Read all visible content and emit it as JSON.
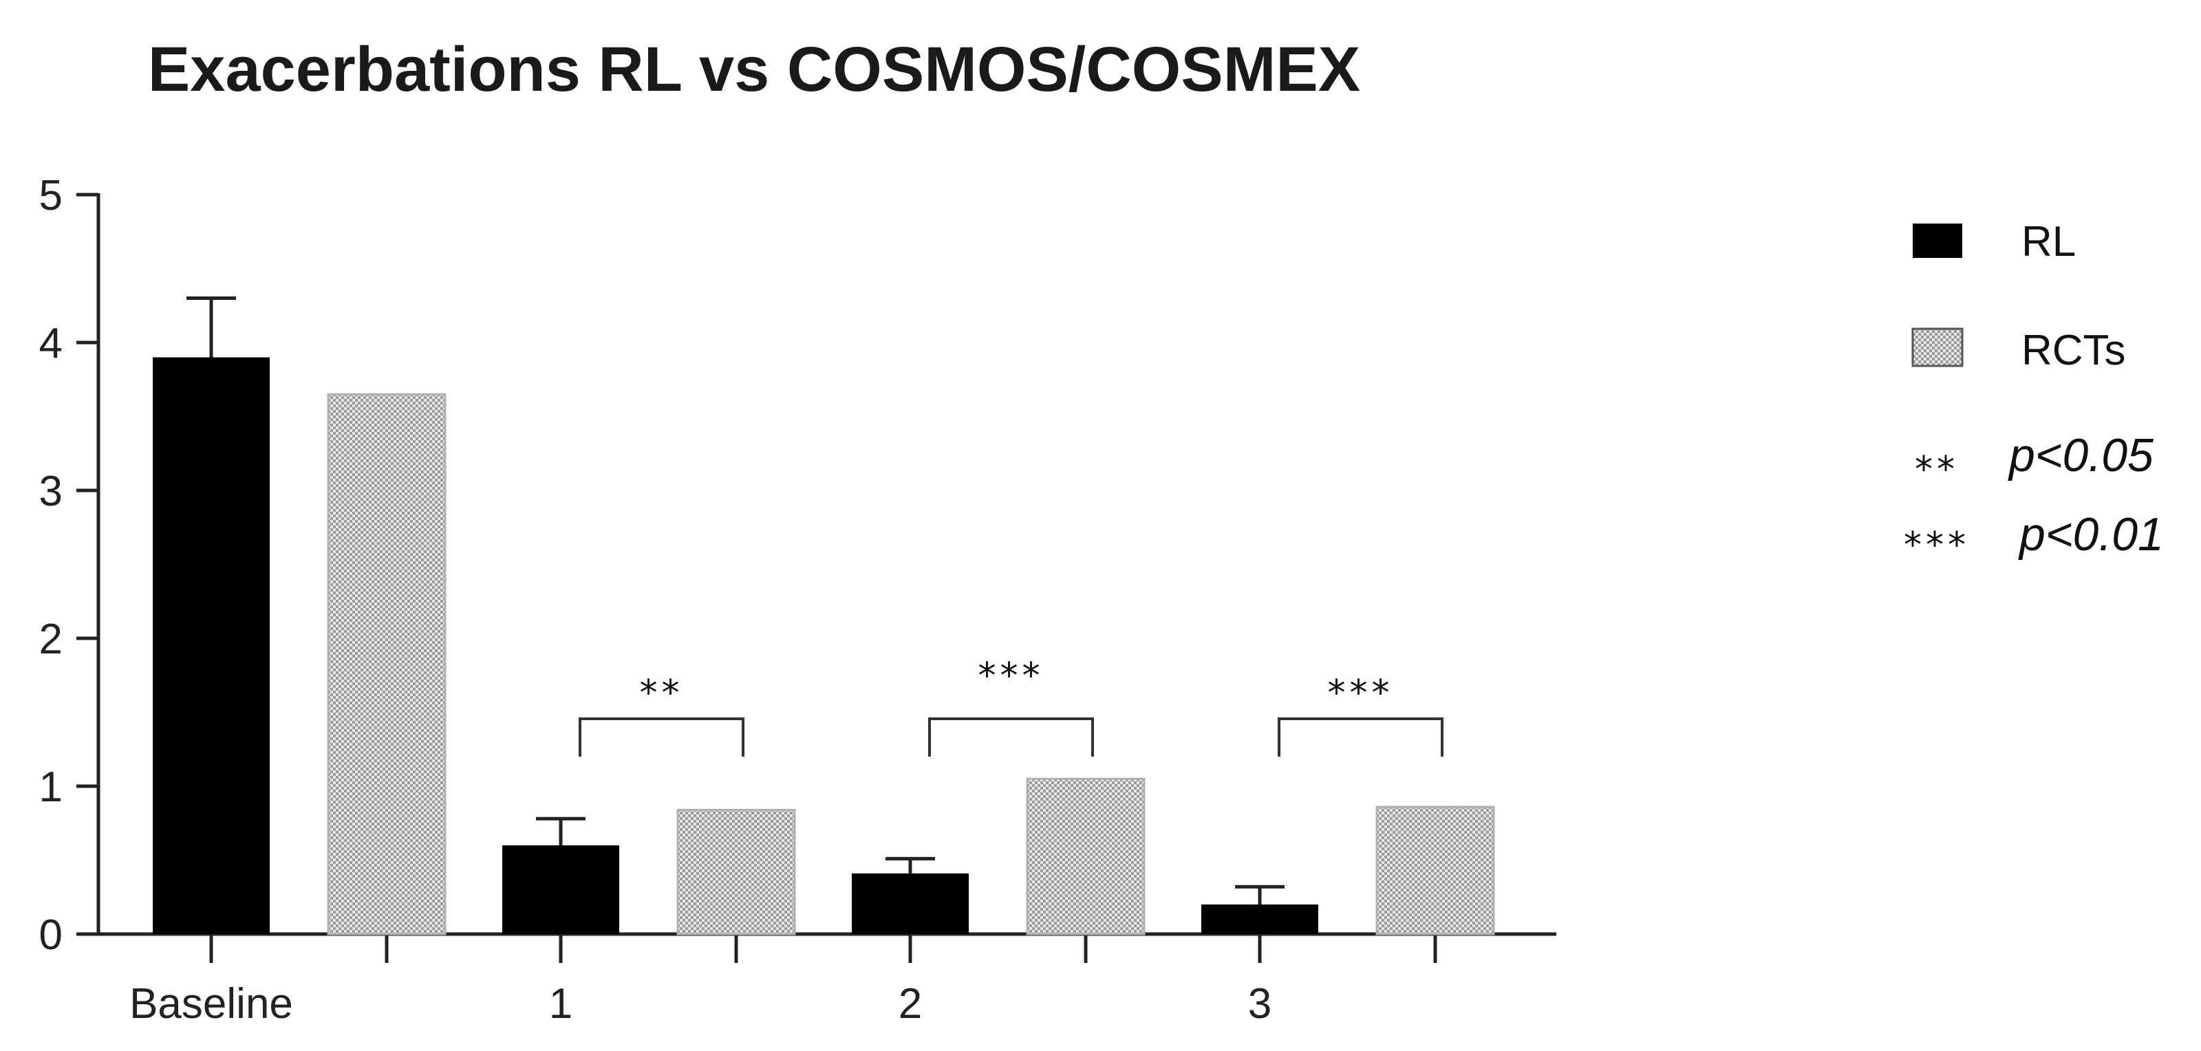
{
  "chart_data": {
    "type": "bar",
    "title": "Exacerbations RL vs COSMOS/COSMEX",
    "xlabel": "",
    "ylabel": "",
    "ylim": [
      0,
      5
    ],
    "yticks": [
      0,
      1,
      2,
      3,
      4,
      5
    ],
    "categories": [
      "Baseline",
      "1",
      "2",
      "3"
    ],
    "series": [
      {
        "name": "RL",
        "values": [
          3.9,
          0.6,
          0.41,
          0.2
        ],
        "error": [
          0.4,
          0.18,
          0.1,
          0.12
        ],
        "color": "#000000",
        "pattern": "solid"
      },
      {
        "name": "RCTs",
        "values": [
          3.65,
          0.84,
          1.05,
          0.86
        ],
        "color": "#bdbdbd",
        "pattern": "checkered"
      }
    ],
    "annotations": [
      {
        "category": "1",
        "marker": "**"
      },
      {
        "category": "2",
        "marker": "***"
      },
      {
        "category": "3",
        "marker": "***"
      }
    ],
    "legend": {
      "position": "right",
      "significance": [
        {
          "marker": "**",
          "text": "p<0.05"
        },
        {
          "marker": "***",
          "text": "p<0.01"
        }
      ]
    },
    "grid": false
  }
}
